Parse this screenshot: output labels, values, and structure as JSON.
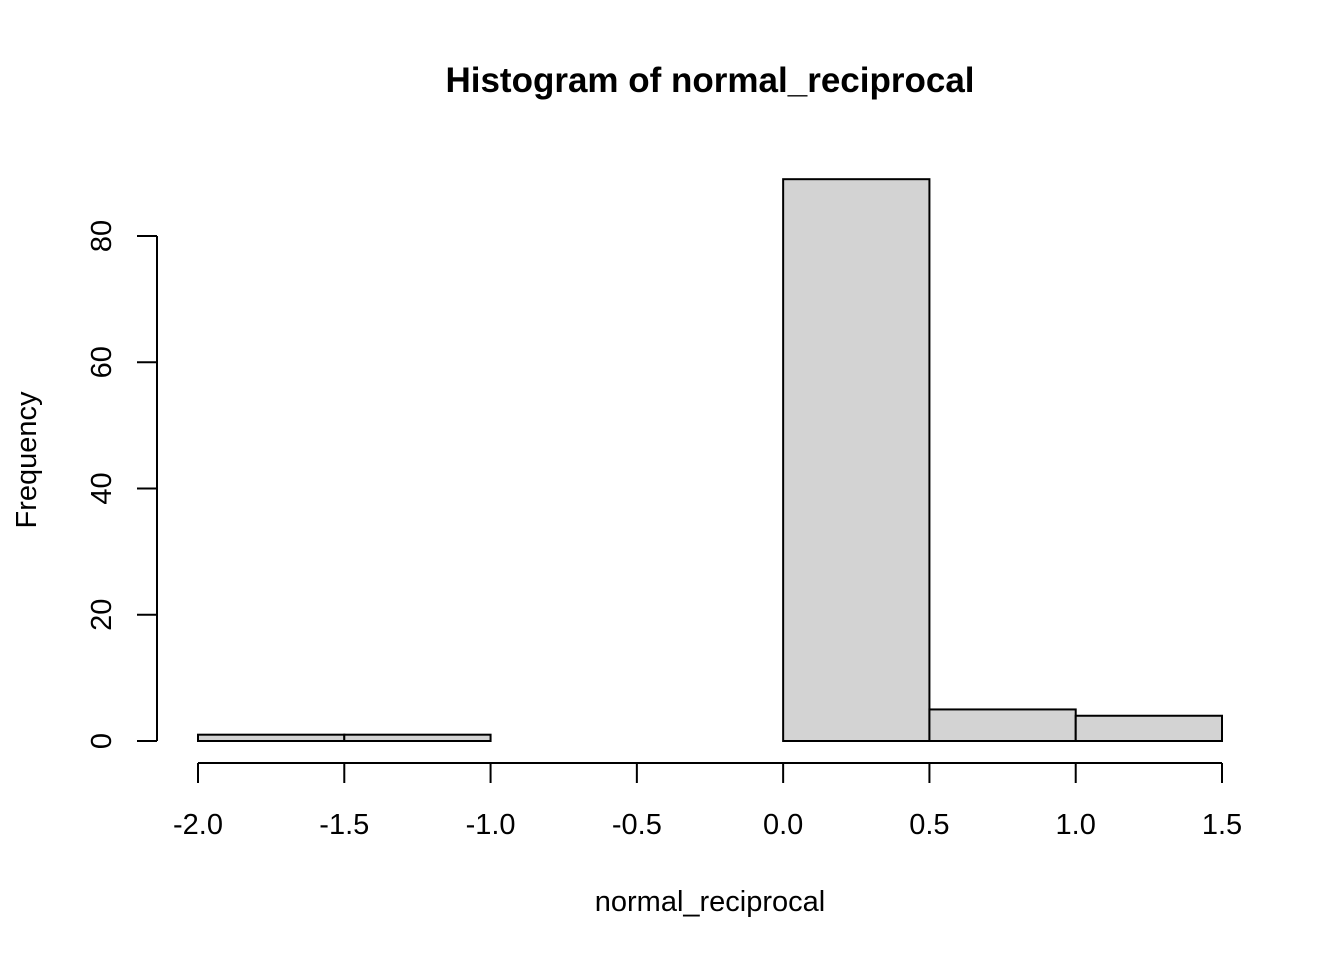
{
  "chart_data": {
    "type": "bar",
    "title": "Histogram of normal_reciprocal",
    "xlabel": "normal_reciprocal",
    "ylabel": "Frequency",
    "bins": [
      {
        "start": -2.0,
        "end": -1.5,
        "count": 1
      },
      {
        "start": -1.5,
        "end": -1.0,
        "count": 1
      },
      {
        "start": -1.0,
        "end": -0.5,
        "count": 0
      },
      {
        "start": -0.5,
        "end": 0.0,
        "count": 0
      },
      {
        "start": 0.0,
        "end": 0.5,
        "count": 89
      },
      {
        "start": 0.5,
        "end": 1.0,
        "count": 5
      },
      {
        "start": 1.0,
        "end": 1.5,
        "count": 4
      }
    ],
    "xlim": [
      -2.0,
      1.5
    ],
    "ylim": [
      0,
      80
    ],
    "x_ticks": [
      -2.0,
      -1.5,
      -1.0,
      -0.5,
      0.0,
      0.5,
      1.0,
      1.5
    ],
    "x_tick_labels": [
      "-2.0",
      "-1.5",
      "-1.0",
      "-0.5",
      "0.0",
      "0.5",
      "1.0",
      "1.5"
    ],
    "y_ticks": [
      0,
      20,
      40,
      60,
      80
    ],
    "y_tick_labels": [
      "0",
      "20",
      "40",
      "60",
      "80"
    ],
    "bar_fill": "#d3d3d3",
    "bar_stroke": "#000000",
    "grid": false,
    "legend": false
  }
}
